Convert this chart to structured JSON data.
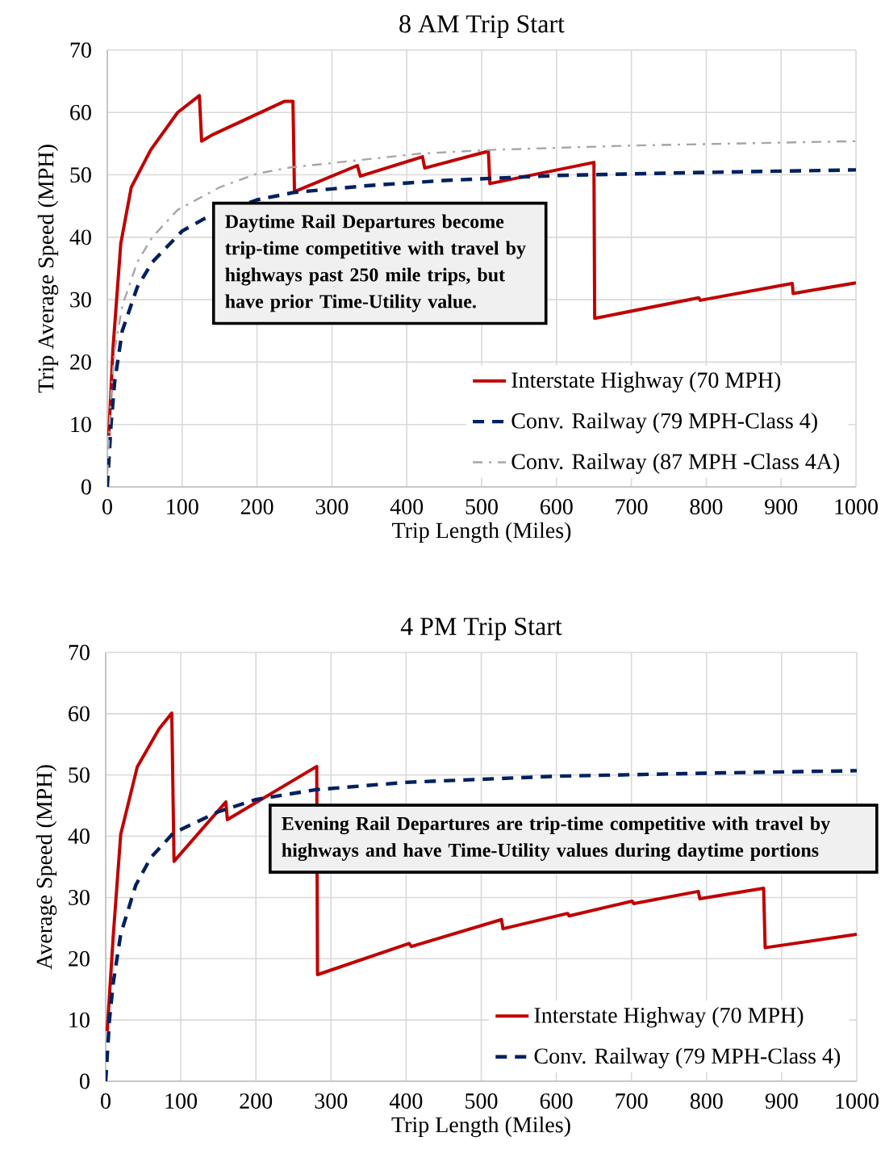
{
  "chart_data": [
    {
      "type": "line",
      "title": "8 AM Trip Start",
      "xlabel": "Trip Length (Miles)",
      "ylabel": "Trip Average Speed (MPH)",
      "xlim": [
        0,
        1000
      ],
      "xticks": [
        0,
        100,
        200,
        300,
        400,
        500,
        600,
        700,
        800,
        900,
        1000
      ],
      "ylim": [
        0,
        70
      ],
      "yticks": [
        0,
        10,
        20,
        30,
        40,
        50,
        60,
        70
      ],
      "grid": true,
      "legend": "bottom right",
      "annotations": [
        "Daytime Rail Departures become trip-time competitive with travel by highways past 250 mile trips, but have prior Time-Utility value."
      ],
      "series": [
        {
          "name": "Interstate Highway (70 MPH)",
          "color": "#c00000",
          "line_style": "solid",
          "x": [
            2,
            7.5,
            18,
            32,
            58,
            94,
            123,
            126,
            140,
            237,
            248,
            250,
            334,
            338,
            421,
            424,
            509,
            511,
            650,
            651,
            790,
            792,
            915,
            916,
            1000
          ],
          "values": [
            8.2,
            22,
            39,
            48,
            54,
            60,
            62.7,
            55.4,
            56.4,
            61.8,
            61.8,
            47.3,
            51.5,
            49.8,
            52.9,
            51.1,
            53.8,
            48.6,
            52,
            27,
            30.3,
            29.9,
            32.6,
            31,
            32.7
          ]
        },
        {
          "name": "Conv. Railway (79 MPH-Class 4)",
          "color": "#002060",
          "line_style": "dashed",
          "x": [
            0,
            5,
            10,
            20,
            40,
            60,
            100,
            130,
            200,
            250,
            350,
            450,
            600,
            800,
            1000
          ],
          "values": [
            0,
            10,
            17,
            25,
            32,
            36,
            41,
            43,
            46,
            47.2,
            48.3,
            49.1,
            49.9,
            50.4,
            50.8
          ]
        },
        {
          "name": "Conv. Railway (87 MPH -Class 4A)",
          "color": "#a6a6a6",
          "line_style": "dashdot",
          "x": [
            0,
            5,
            10,
            20,
            40,
            60,
            94,
            150,
            200,
            245,
            417,
            511,
            700,
            1000
          ],
          "values": [
            2,
            15,
            22,
            29,
            36,
            40,
            44.4,
            48,
            50.2,
            51.2,
            53.4,
            54,
            54.7,
            55.4
          ]
        }
      ]
    },
    {
      "type": "line",
      "title": "4 PM Trip Start",
      "xlabel": "Trip Length (Miles)",
      "ylabel": "Average Speed (MPH)",
      "xlim": [
        0,
        1000
      ],
      "xticks": [
        0,
        100,
        200,
        300,
        400,
        500,
        600,
        700,
        800,
        900,
        1000
      ],
      "ylim": [
        0,
        70
      ],
      "yticks": [
        0,
        10,
        20,
        30,
        40,
        50,
        60,
        70
      ],
      "grid": true,
      "legend": "bottom right",
      "annotations": [
        "Evening Rail Departures are trip-time competitive with travel by highways and have Time-Utility values during daytime portions"
      ],
      "series": [
        {
          "name": "Interstate Highway (70 MPH)",
          "color": "#c00000",
          "line_style": "solid",
          "x": [
            2,
            10,
            20,
            42,
            71,
            88,
            91,
            160,
            162,
            281,
            282,
            404,
            407,
            527,
            529,
            615,
            617,
            701,
            703,
            789,
            791,
            876,
            878,
            1000
          ],
          "values": [
            8.2,
            23.6,
            40.3,
            51.3,
            57.5,
            60.1,
            35.9,
            45.6,
            42.7,
            51.4,
            17.4,
            22.5,
            22,
            26.4,
            24.9,
            27.4,
            27,
            29.4,
            29,
            31,
            29.8,
            31.5,
            21.8,
            24
          ]
        },
        {
          "name": "Conv. Railway (79 MPH-Class 4)",
          "color": "#002060",
          "line_style": "dashed",
          "x": [
            0,
            5,
            10,
            20,
            40,
            60,
            90,
            150,
            200,
            280,
            400,
            600,
            800,
            1000
          ],
          "values": [
            0,
            10,
            16,
            24,
            32,
            36.5,
            40.5,
            44,
            46,
            47.6,
            48.8,
            49.8,
            50.3,
            50.7
          ]
        }
      ]
    }
  ]
}
